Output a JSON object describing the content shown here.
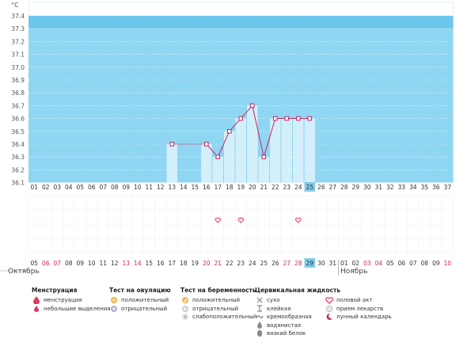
{
  "chart_data": {
    "type": "line",
    "ylabel": "°C",
    "y_ticks": [
      "37.4",
      "37.3",
      "37.2",
      "37.1",
      "37.0",
      "36.9",
      "36.8",
      "36.7",
      "36.6",
      "36.5",
      "36.4",
      "36.3",
      "36.2",
      "36.1"
    ],
    "ylim": [
      36.1,
      37.4
    ],
    "cycle_days": [
      "01",
      "02",
      "03",
      "04",
      "05",
      "06",
      "07",
      "08",
      "09",
      "10",
      "11",
      "12",
      "13",
      "14",
      "15",
      "16",
      "17",
      "18",
      "19",
      "20",
      "21",
      "22",
      "23",
      "24",
      "25",
      "26",
      "27",
      "28",
      "29",
      "30",
      "31",
      "32",
      "33",
      "34",
      "35",
      "36",
      "37"
    ],
    "calendar_dates": [
      "05",
      "06",
      "07",
      "08",
      "09",
      "10",
      "11",
      "12",
      "13",
      "14",
      "15",
      "16",
      "17",
      "18",
      "19",
      "20",
      "21",
      "22",
      "23",
      "24",
      "25",
      "26",
      "27",
      "28",
      "29",
      "30",
      "31",
      "01",
      "02",
      "03",
      "04",
      "05",
      "06",
      "07",
      "08",
      "09",
      "10"
    ],
    "weekend_dates_index": [
      1,
      2,
      8,
      9,
      15,
      16,
      22,
      23,
      29,
      30,
      36
    ],
    "current_day_index": 24,
    "temperature_series": [
      {
        "day": 13,
        "value": 36.4
      },
      {
        "day": 16,
        "value": 36.4
      },
      {
        "day": 17,
        "value": 36.3
      },
      {
        "day": 18,
        "value": 36.5
      },
      {
        "day": 19,
        "value": 36.6
      },
      {
        "day": 20,
        "value": 36.7
      },
      {
        "day": 21,
        "value": 36.3
      },
      {
        "day": 22,
        "value": 36.6
      },
      {
        "day": 23,
        "value": 36.6
      },
      {
        "day": 24,
        "value": 36.6
      },
      {
        "day": 25,
        "value": 36.6
      }
    ],
    "dashed_segments": [
      [
        13,
        16
      ]
    ],
    "sex_marker_days": [
      17,
      19,
      24
    ],
    "grid": true
  },
  "months": {
    "left": "Октябрь",
    "right": "Ноябрь"
  },
  "legend": {
    "menstruation": {
      "title": "Менструация",
      "items": [
        "менструация",
        "небольшие выделения"
      ]
    },
    "ovulation": {
      "title": "Тест на овуляцию",
      "items": [
        "положительный",
        "отрицательный"
      ]
    },
    "pregnancy": {
      "title": "Тест на беременность",
      "items": [
        "положительный",
        "отрицательный",
        "слабоположительный"
      ]
    },
    "cervical": {
      "title": "Цервикальная жидкость",
      "items": [
        "сухо",
        "клейкая",
        "кремообразная",
        "водянистая",
        "вязкий белок"
      ]
    },
    "other": {
      "items": [
        "половой акт",
        "прием лекарств",
        "лунный календарь"
      ]
    }
  },
  "colors": {
    "chart_bg": "#8fd6f2",
    "top_band": "#6cc6ec",
    "bar": "#d3effb",
    "line": "#c3255e",
    "weekend": "#e0245e",
    "highlight": "#7ecbea"
  }
}
